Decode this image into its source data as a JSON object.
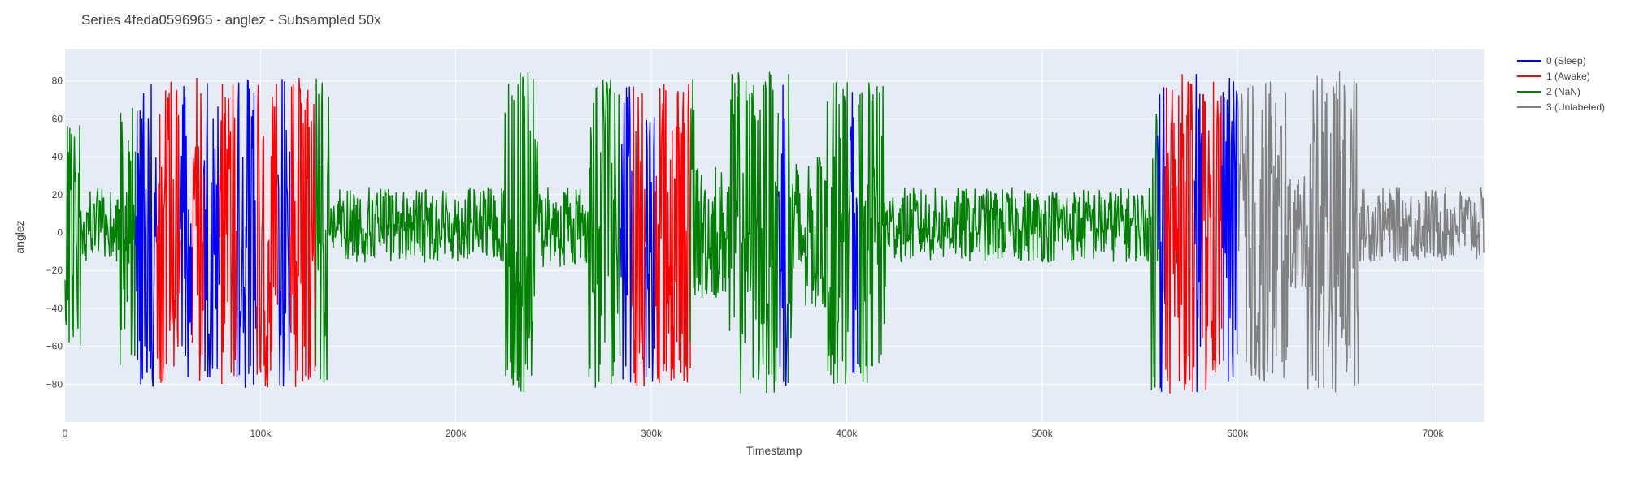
{
  "chart_data": {
    "type": "line",
    "title": "Series 4feda0596965 - anglez - Subsampled 50x",
    "xlabel": "Timestamp",
    "ylabel": "anglez",
    "xlim": [
      0,
      726000
    ],
    "ylim": [
      -100,
      97
    ],
    "x_ticks": [
      {
        "value": 0,
        "label": "0"
      },
      {
        "value": 100000,
        "label": "100k"
      },
      {
        "value": 200000,
        "label": "200k"
      },
      {
        "value": 300000,
        "label": "300k"
      },
      {
        "value": 400000,
        "label": "400k"
      },
      {
        "value": 500000,
        "label": "500k"
      },
      {
        "value": 600000,
        "label": "600k"
      },
      {
        "value": 700000,
        "label": "700k"
      }
    ],
    "y_ticks": [
      {
        "value": 80,
        "label": "80"
      },
      {
        "value": 60,
        "label": "60"
      },
      {
        "value": 40,
        "label": "40"
      },
      {
        "value": 20,
        "label": "20"
      },
      {
        "value": 0,
        "label": "0"
      },
      {
        "value": -20,
        "label": "−20"
      },
      {
        "value": -40,
        "label": "−40"
      },
      {
        "value": -60,
        "label": "−60"
      },
      {
        "value": -80,
        "label": "−80"
      }
    ],
    "grid": true,
    "legend_position": "top-right",
    "background_color": "#e5ecf6",
    "series": [
      {
        "name": "0 (Sleep)",
        "color": "#0000ff",
        "segments": [
          [
            36000,
            47000
          ],
          [
            59000,
            65000
          ],
          [
            71000,
            79000
          ],
          [
            88000,
            98000
          ],
          [
            109000,
            115000
          ],
          [
            284000,
            290000
          ],
          [
            297000,
            302000
          ],
          [
            365000,
            370000
          ],
          [
            402000,
            406000
          ],
          [
            559000,
            563000
          ],
          [
            578000,
            582000
          ],
          [
            592000,
            600000
          ]
        ]
      },
      {
        "name": "1 (Awake)",
        "color": "#ff0000",
        "segments": [
          [
            47000,
            59000
          ],
          [
            65000,
            71000
          ],
          [
            79000,
            88000
          ],
          [
            98000,
            109000
          ],
          [
            115000,
            128000
          ],
          [
            290000,
            297000
          ],
          [
            302000,
            320000
          ],
          [
            563000,
            578000
          ],
          [
            582000,
            592000
          ]
        ]
      },
      {
        "name": "2 (NaN)",
        "color": "#008000",
        "segments": [
          [
            0,
            36000
          ],
          [
            128000,
            284000
          ],
          [
            320000,
            365000
          ],
          [
            370000,
            402000
          ],
          [
            406000,
            559000
          ]
        ]
      },
      {
        "name": "3 (Unlabeled)",
        "color": "#808080",
        "segments": [
          [
            600000,
            726000
          ]
        ]
      }
    ],
    "activity_profile": [
      {
        "start": 0,
        "end": 8000,
        "amplitude": 60
      },
      {
        "start": 8000,
        "end": 28000,
        "amplitude": 22
      },
      {
        "start": 28000,
        "end": 36000,
        "amplitude": 70
      },
      {
        "start": 36000,
        "end": 135000,
        "amplitude": 82
      },
      {
        "start": 135000,
        "end": 225000,
        "amplitude": 22
      },
      {
        "start": 225000,
        "end": 242000,
        "amplitude": 85
      },
      {
        "start": 242000,
        "end": 268000,
        "amplitude": 25
      },
      {
        "start": 268000,
        "end": 322000,
        "amplitude": 82
      },
      {
        "start": 322000,
        "end": 340000,
        "amplitude": 35
      },
      {
        "start": 340000,
        "end": 372000,
        "amplitude": 85
      },
      {
        "start": 372000,
        "end": 390000,
        "amplitude": 40
      },
      {
        "start": 390000,
        "end": 420000,
        "amplitude": 80
      },
      {
        "start": 420000,
        "end": 556000,
        "amplitude": 22
      },
      {
        "start": 556000,
        "end": 600000,
        "amplitude": 85
      },
      {
        "start": 600000,
        "end": 626000,
        "amplitude": 80
      },
      {
        "start": 626000,
        "end": 636000,
        "amplitude": 30
      },
      {
        "start": 636000,
        "end": 662000,
        "amplitude": 85
      },
      {
        "start": 662000,
        "end": 726000,
        "amplitude": 22
      }
    ]
  }
}
